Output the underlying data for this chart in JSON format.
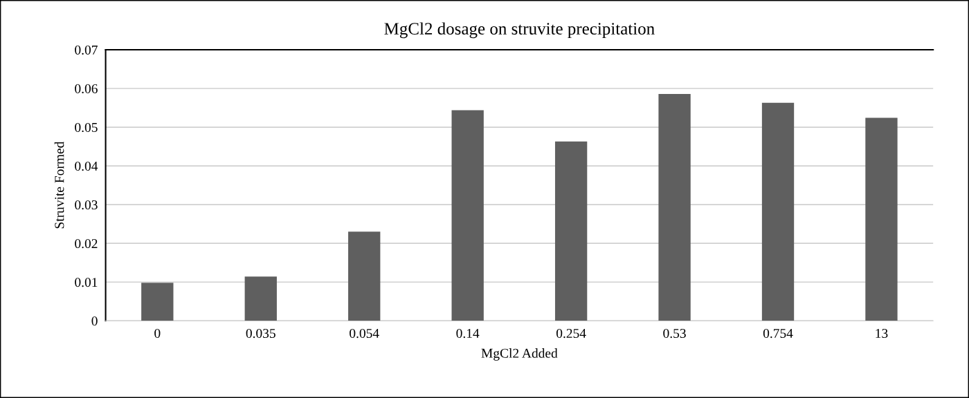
{
  "chart_data": {
    "type": "bar",
    "title": "MgCl2 dosage on struvite precipitation",
    "xlabel": "MgCl2 Added",
    "ylabel": "Struvite Formed",
    "categories": [
      "0",
      "0.035",
      "0.054",
      "0.14",
      "0.254",
      "0.53",
      "0.754",
      "13"
    ],
    "values": [
      0.0098,
      0.0114,
      0.023,
      0.0544,
      0.0463,
      0.0586,
      0.0563,
      0.0524
    ],
    "color": "#5f5f5f",
    "ylim": [
      0,
      0.07
    ],
    "yticks": [
      0,
      0.01,
      0.02,
      0.03,
      0.04,
      0.05,
      0.06,
      0.07
    ],
    "grid": "y"
  }
}
